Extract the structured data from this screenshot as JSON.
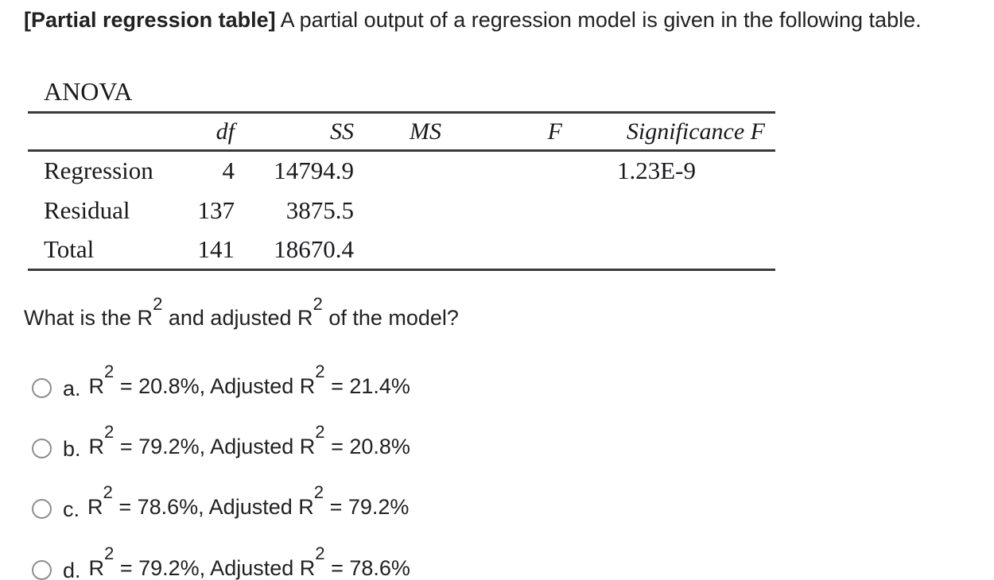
{
  "heading": {
    "bold": "[Partial regression table]",
    "rest": " A partial output of a regression model is given in the following table."
  },
  "anova": {
    "title": "ANOVA",
    "columns": [
      "",
      "df",
      "SS",
      "MS",
      "F",
      "Significance F"
    ],
    "rows": [
      {
        "label": "Regression",
        "df": "4",
        "ss": "14794.9",
        "ms": "",
        "f": "",
        "sig": "1.23E-9"
      },
      {
        "label": "Residual",
        "df": "137",
        "ss": "3875.5",
        "ms": "",
        "f": "",
        "sig": ""
      },
      {
        "label": "Total",
        "df": "141",
        "ss": "18670.4",
        "ms": "",
        "f": "",
        "sig": ""
      }
    ]
  },
  "question": {
    "seg1": "What is the R",
    "sup1": "2",
    "seg2": " and adjusted R",
    "sup2": "2",
    "seg3": " of the model?"
  },
  "options": [
    {
      "letter": "a.",
      "seg1": "R",
      "sup1": "2",
      "seg2": " = 20.8%, Adjusted R",
      "sup2": "2",
      "seg3": " = 21.4%",
      "selected": false
    },
    {
      "letter": "b.",
      "seg1": "R",
      "sup1": "2",
      "seg2": " = 79.2%, Adjusted R",
      "sup2": "2",
      "seg3": " = 20.8%",
      "selected": false
    },
    {
      "letter": "c.",
      "seg1": "R",
      "sup1": "2",
      "seg2": " = 78.6%, Adjusted R",
      "sup2": "2",
      "seg3": " = 79.2%",
      "selected": false
    },
    {
      "letter": "d.",
      "seg1": "R",
      "sup1": "2",
      "seg2": " = 79.2%, Adjusted R",
      "sup2": "2",
      "seg3": " = 78.6%",
      "selected": false
    }
  ],
  "colors": {
    "text": "#212121",
    "table_rule": "#3a3a3a",
    "radio_border": "#8e8e8e",
    "background": "#ffffff"
  }
}
